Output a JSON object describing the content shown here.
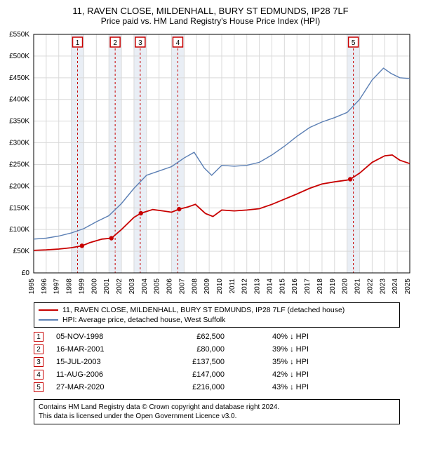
{
  "title": "11, RAVEN CLOSE, MILDENHALL, BURY ST EDMUNDS, IP28 7LF",
  "subtitle": "Price paid vs. HM Land Registry's House Price Index (HPI)",
  "chart": {
    "type": "line",
    "background_color": "#ffffff",
    "grid_color": "#d9d9d9",
    "axis_color": "#000000",
    "axis_fontsize": 10,
    "x": {
      "min": 1995,
      "max": 2025,
      "ticks": [
        1995,
        1996,
        1997,
        1998,
        1999,
        2000,
        2001,
        2002,
        2003,
        2004,
        2005,
        2006,
        2007,
        2008,
        2009,
        2010,
        2011,
        2012,
        2013,
        2014,
        2015,
        2016,
        2017,
        2018,
        2019,
        2020,
        2021,
        2022,
        2023,
        2024,
        2025
      ]
    },
    "y": {
      "min": 0,
      "max": 550000,
      "ticks": [
        0,
        50000,
        100000,
        150000,
        200000,
        250000,
        300000,
        350000,
        400000,
        450000,
        500000,
        550000
      ],
      "labels": [
        "£0",
        "£50K",
        "£100K",
        "£150K",
        "£200K",
        "£250K",
        "£300K",
        "£350K",
        "£400K",
        "£450K",
        "£500K",
        "£550K"
      ]
    },
    "band_years": [
      1998,
      2001,
      2003,
      2006,
      2020
    ],
    "band_fill": "#e9eef5",
    "band_dash_color": "#c80000",
    "marker_box_border": "#c80000",
    "marker_box_fill": "#ffffff",
    "marker_text_color": "#000000",
    "series": [
      {
        "name": "property",
        "color": "#c80000",
        "width": 1.8,
        "points": [
          [
            1995.0,
            52000
          ],
          [
            1996.0,
            53000
          ],
          [
            1997.0,
            55000
          ],
          [
            1998.0,
            58000
          ],
          [
            1998.85,
            62500
          ],
          [
            1999.5,
            70000
          ],
          [
            2000.45,
            78000
          ],
          [
            2001.2,
            80000
          ],
          [
            2002.0,
            100000
          ],
          [
            2003.0,
            128000
          ],
          [
            2003.55,
            137500
          ],
          [
            2004.5,
            146000
          ],
          [
            2005.3,
            143000
          ],
          [
            2006.0,
            140000
          ],
          [
            2006.6,
            147000
          ],
          [
            2007.3,
            152000
          ],
          [
            2007.9,
            158000
          ],
          [
            2008.7,
            137000
          ],
          [
            2009.3,
            130000
          ],
          [
            2010.0,
            145000
          ],
          [
            2011.0,
            143000
          ],
          [
            2012.0,
            145000
          ],
          [
            2013.0,
            148000
          ],
          [
            2014.0,
            158000
          ],
          [
            2015.0,
            170000
          ],
          [
            2016.0,
            182000
          ],
          [
            2017.0,
            195000
          ],
          [
            2018.0,
            205000
          ],
          [
            2019.0,
            210000
          ],
          [
            2020.0,
            214000
          ],
          [
            2020.25,
            216000
          ],
          [
            2021.0,
            230000
          ],
          [
            2022.0,
            255000
          ],
          [
            2023.0,
            270000
          ],
          [
            2023.6,
            272000
          ],
          [
            2024.2,
            260000
          ],
          [
            2025.0,
            252000
          ]
        ],
        "markers": [
          [
            1998.85,
            62500
          ],
          [
            2001.2,
            80000
          ],
          [
            2003.55,
            137500
          ],
          [
            2006.6,
            147000
          ],
          [
            2020.25,
            216000
          ]
        ]
      },
      {
        "name": "hpi",
        "color": "#5b7fb4",
        "width": 1.4,
        "points": [
          [
            1995.0,
            78000
          ],
          [
            1996.0,
            80000
          ],
          [
            1997.0,
            85000
          ],
          [
            1998.0,
            92000
          ],
          [
            1999.0,
            102000
          ],
          [
            2000.0,
            118000
          ],
          [
            2001.0,
            132000
          ],
          [
            2002.0,
            160000
          ],
          [
            2003.0,
            195000
          ],
          [
            2004.0,
            225000
          ],
          [
            2005.0,
            235000
          ],
          [
            2006.0,
            245000
          ],
          [
            2007.0,
            265000
          ],
          [
            2007.8,
            278000
          ],
          [
            2008.6,
            242000
          ],
          [
            2009.2,
            225000
          ],
          [
            2010.0,
            248000
          ],
          [
            2011.0,
            246000
          ],
          [
            2012.0,
            248000
          ],
          [
            2013.0,
            255000
          ],
          [
            2014.0,
            272000
          ],
          [
            2015.0,
            292000
          ],
          [
            2016.0,
            315000
          ],
          [
            2017.0,
            335000
          ],
          [
            2018.0,
            348000
          ],
          [
            2019.0,
            358000
          ],
          [
            2020.0,
            370000
          ],
          [
            2021.0,
            400000
          ],
          [
            2022.0,
            445000
          ],
          [
            2022.9,
            472000
          ],
          [
            2023.5,
            460000
          ],
          [
            2024.2,
            450000
          ],
          [
            2025.0,
            448000
          ]
        ]
      }
    ],
    "marker_labels": [
      "1",
      "2",
      "3",
      "4",
      "5"
    ]
  },
  "legend": {
    "items": [
      {
        "color": "#c80000",
        "label": "11, RAVEN CLOSE, MILDENHALL, BURY ST EDMUNDS, IP28 7LF (detached house)"
      },
      {
        "color": "#5b7fb4",
        "label": "HPI: Average price, detached house, West Suffolk"
      }
    ]
  },
  "events": {
    "badge_border": "#c80000",
    "rows": [
      {
        "n": "1",
        "date": "05-NOV-1998",
        "price": "£62,500",
        "diff": "40% ↓ HPI"
      },
      {
        "n": "2",
        "date": "16-MAR-2001",
        "price": "£80,000",
        "diff": "39% ↓ HPI"
      },
      {
        "n": "3",
        "date": "15-JUL-2003",
        "price": "£137,500",
        "diff": "35% ↓ HPI"
      },
      {
        "n": "4",
        "date": "11-AUG-2006",
        "price": "£147,000",
        "diff": "42% ↓ HPI"
      },
      {
        "n": "5",
        "date": "27-MAR-2020",
        "price": "£216,000",
        "diff": "43% ↓ HPI"
      }
    ]
  },
  "license": {
    "line1": "Contains HM Land Registry data © Crown copyright and database right 2024.",
    "line2": "This data is licensed under the Open Government Licence v3.0."
  }
}
